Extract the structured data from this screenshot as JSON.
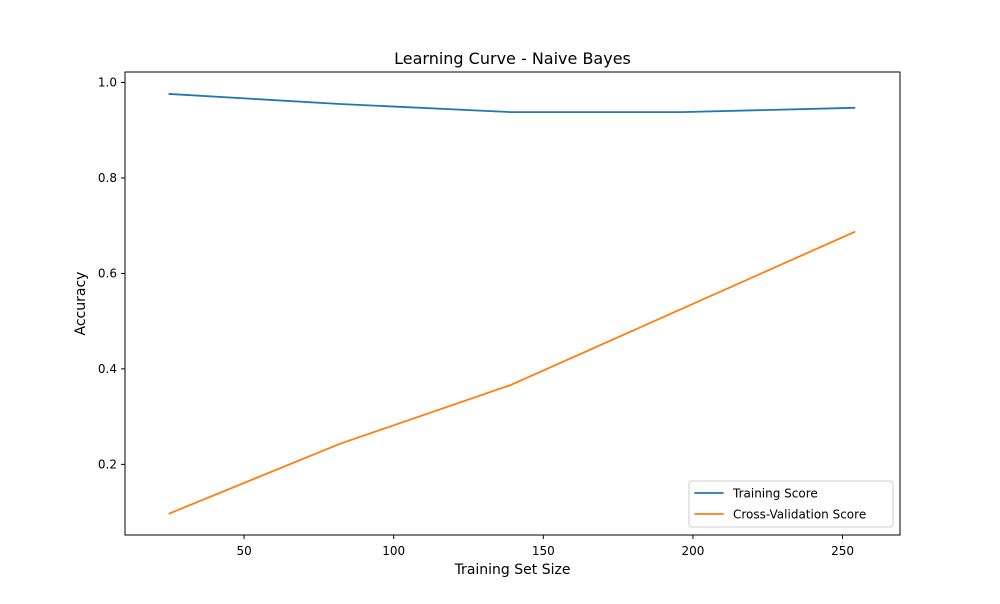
{
  "chart_data": {
    "type": "line",
    "title": "Learning Curve - Naive Bayes",
    "xlabel": "Training Set Size",
    "ylabel": "Accuracy",
    "xlim": [
      10.2,
      269.2
    ],
    "ylim": [
      0.052,
      1.022
    ],
    "xticks": [
      50,
      100,
      150,
      200,
      250
    ],
    "yticks": [
      0.2,
      0.4,
      0.6,
      0.8,
      1.0
    ],
    "xtick_labels": [
      "50",
      "100",
      "150",
      "200",
      "250"
    ],
    "ytick_labels": [
      "0.2",
      "0.4",
      "0.6",
      "0.8",
      "1.0"
    ],
    "grid": false,
    "legend_position": "bottom-right",
    "x": [
      25,
      82,
      139,
      196,
      254
    ],
    "series": [
      {
        "name": "Training Score",
        "color": "#1f77b4",
        "values": [
          0.976,
          0.955,
          0.938,
          0.938,
          0.947
        ]
      },
      {
        "name": "Cross-Validation Score",
        "color": "#ff7f0e",
        "values": [
          0.097,
          0.243,
          0.366,
          0.525,
          0.687
        ]
      }
    ]
  }
}
